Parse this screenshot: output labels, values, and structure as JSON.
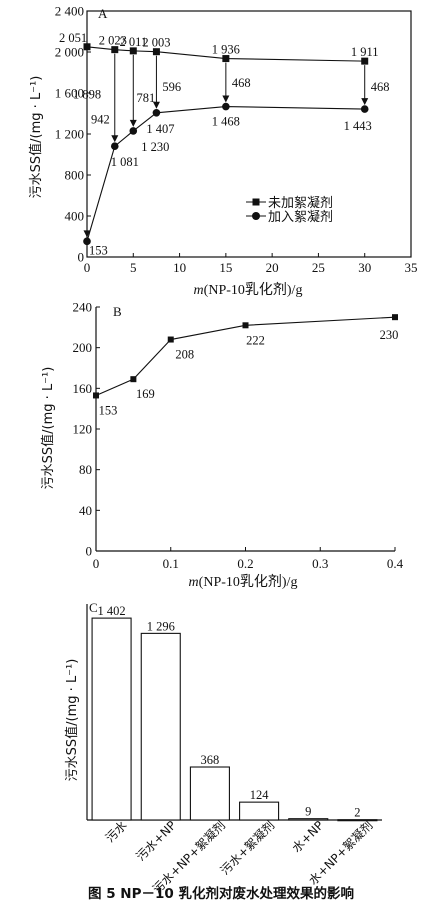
{
  "chart_data": [
    {
      "panel": "A",
      "type": "line",
      "xlabel_italic": "m",
      "xlabel_rest": "(NP-10乳化剂)/g",
      "ylabel": "污水SS值/(mg · L⁻¹)",
      "xlim": [
        0,
        35
      ],
      "ylim": [
        0,
        2400
      ],
      "xticks": [
        0,
        5,
        10,
        15,
        20,
        25,
        30,
        35
      ],
      "yticks": [
        0,
        400,
        800,
        1200,
        1600,
        2000,
        2400
      ],
      "ytick_labels": [
        "0",
        "400",
        "800",
        "1 200",
        "1 600",
        "2 000",
        "2 400"
      ],
      "legend_position": "right",
      "series": [
        {
          "name": "未加絮凝剂",
          "marker": "square",
          "x": [
            0,
            3,
            5,
            7.5,
            15,
            30
          ],
          "y": [
            2051,
            2023,
            2011,
            2003,
            1936,
            1911
          ],
          "labels": [
            "2 051",
            "2 023",
            "2 011",
            "2 003",
            "1 936",
            "1 911"
          ]
        },
        {
          "name": "加入絮凝剂",
          "marker": "circle",
          "x": [
            0,
            3,
            5,
            7.5,
            15,
            30
          ],
          "y": [
            153,
            1081,
            1230,
            1407,
            1468,
            1443
          ],
          "labels": [
            "153",
            "1 081",
            "1 230",
            "1 407",
            "1 468",
            "1 443"
          ]
        }
      ],
      "diff_labels": [
        {
          "x": 0,
          "label": "1 898"
        },
        {
          "x": 3,
          "label": "942"
        },
        {
          "x": 5,
          "label": "781"
        },
        {
          "x": 7.5,
          "label": "596"
        },
        {
          "x": 15,
          "label": "468"
        },
        {
          "x": 30,
          "label": "468"
        }
      ]
    },
    {
      "panel": "B",
      "type": "line",
      "xlabel_italic": "m",
      "xlabel_rest": "(NP-10乳化剂)/g",
      "ylabel": "污水SS值/(mg · L⁻¹)",
      "xlim": [
        0,
        0.4
      ],
      "ylim": [
        0,
        240
      ],
      "xticks": [
        0,
        0.1,
        0.2,
        0.3,
        0.4
      ],
      "xtick_labels": [
        "0",
        "0.1",
        "0.2",
        "0.3",
        "0.4"
      ],
      "yticks": [
        0,
        40,
        80,
        120,
        160,
        200,
        240
      ],
      "ytick_labels": [
        "0",
        "40",
        "80",
        "120",
        "160",
        "200",
        "240"
      ],
      "series": [
        {
          "marker": "square",
          "x": [
            0,
            0.05,
            0.1,
            0.2,
            0.4
          ],
          "y": [
            153,
            169,
            208,
            222,
            230
          ],
          "labels": [
            "153",
            "169",
            "208",
            "222",
            "230"
          ]
        }
      ]
    },
    {
      "panel": "C",
      "type": "bar",
      "ylabel": "污水SS值/(mg · L⁻¹)",
      "ylim": [
        0,
        1500
      ],
      "categories": [
        "污水",
        "污水+NP",
        "污水+NP+絮凝剂",
        "污水+絮凝剂",
        "水+NP",
        "水+NP+絮凝剂"
      ],
      "values": [
        1402,
        1296,
        368,
        124,
        9,
        2
      ],
      "labels": [
        "1 402",
        "1 296",
        "368",
        "124",
        "9",
        "2"
      ]
    }
  ],
  "caption": "图 5   NP－10 乳化剂对废水处理效果的影响"
}
